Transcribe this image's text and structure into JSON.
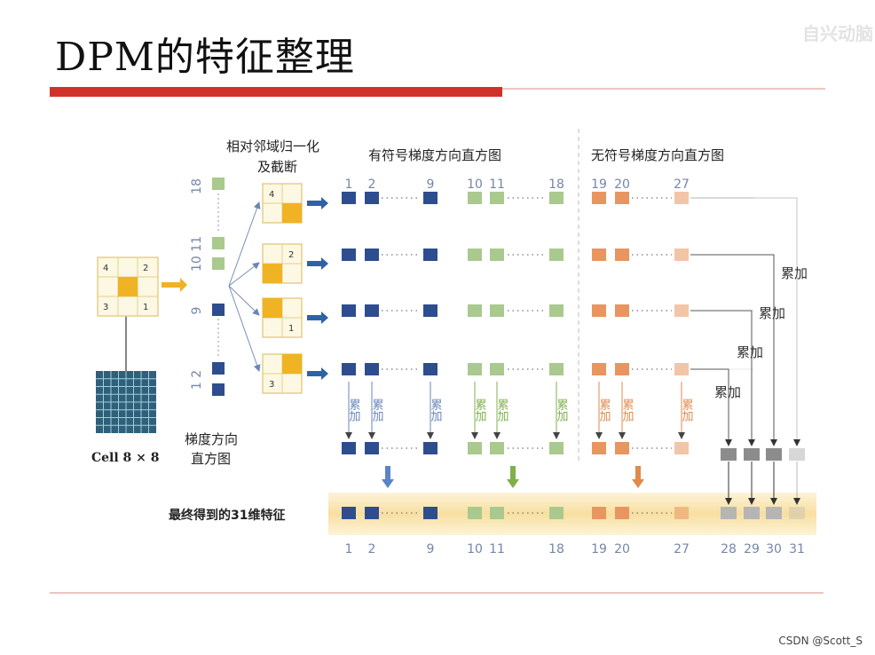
{
  "slide": {
    "title": "DPM的特征整理",
    "watermark": "自兴动脑",
    "credit": "CSDN @Scott_S"
  },
  "diagram": {
    "cell_label": "Cell 8 × 8",
    "grad_hist_label_line1": "梯度方向",
    "grad_hist_label_line2": "直方图",
    "normalize_label_line1": "相对邻域归一化",
    "normalize_label_line2": "及截断",
    "signed_label": "有符号梯度方向直方图",
    "unsigned_label": "无符号梯度方向直方图",
    "accumulate": "累加",
    "final_label": "最终得到的31维特征",
    "dots": "······",
    "vertical_ticks": [
      "18",
      "10 11",
      "9",
      "1 2"
    ],
    "cell_neighbors": [
      "4",
      "2",
      "3",
      "1"
    ],
    "top_indices": [
      "1",
      "2",
      "9",
      "10",
      "11",
      "18",
      "19",
      "20",
      "27"
    ],
    "bottom_indices": [
      "1",
      "2",
      "9",
      "10",
      "11",
      "18",
      "19",
      "20",
      "27",
      "28",
      "29",
      "30",
      "31"
    ],
    "norm_block_numbers": [
      "4",
      "2",
      "1",
      "3"
    ],
    "colors": {
      "blue": "#2e4d8f",
      "green": "#a9c98e",
      "orange": "#e9955f",
      "gray": "#9a9a9a",
      "accent_red": "#d0322a",
      "gold": "#f0b323"
    }
  }
}
